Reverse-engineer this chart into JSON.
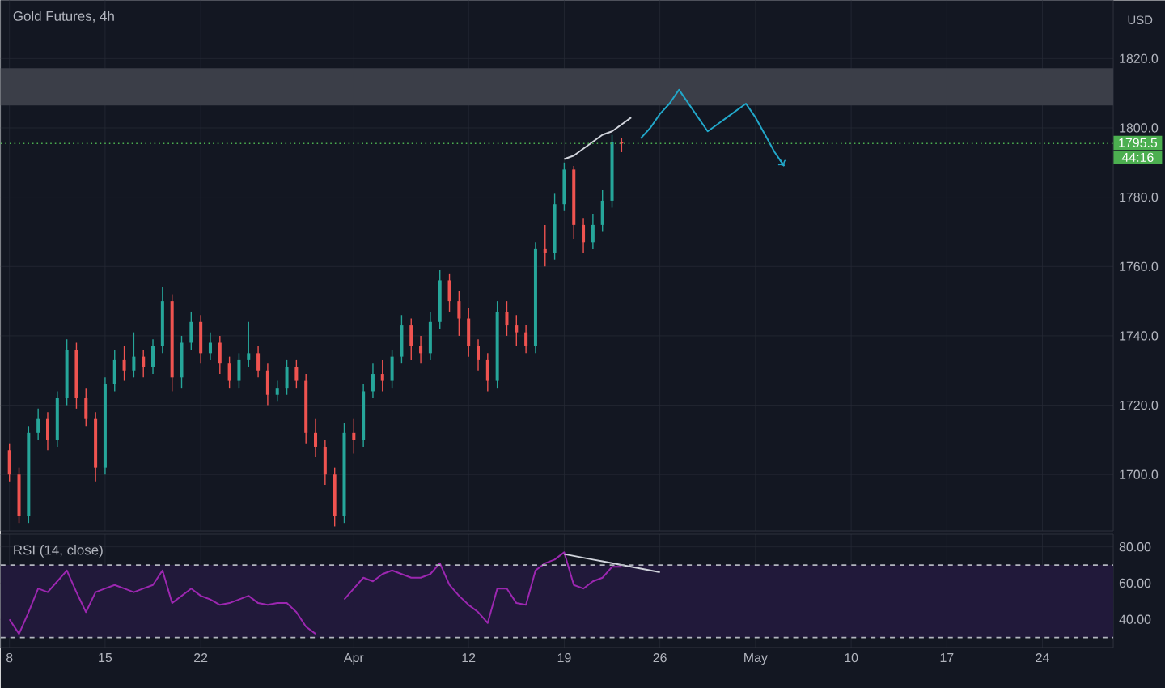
{
  "chart_data": [
    {
      "type": "candlestick",
      "title": "Gold Futures, 4h",
      "annotations": [
        "USD",
        "44:16"
      ],
      "ylim": [
        1683.7,
        1836.8
      ],
      "yticks": [
        {
          "value": 1700,
          "label": "1700.0"
        },
        {
          "value": 1720,
          "label": "1720.0"
        },
        {
          "value": 1740,
          "label": "1740.0"
        },
        {
          "value": 1760,
          "label": "1760.0"
        },
        {
          "value": 1780,
          "label": "1780.0"
        },
        {
          "value": 1800,
          "label": "1800.0"
        },
        {
          "value": 1820,
          "label": "1820.0"
        }
      ],
      "tick_labels": "y",
      "grid": true,
      "bands": [
        {
          "axis": "y",
          "from": 1806.5,
          "to": 1817.2,
          "color": "#3b3e48"
        }
      ],
      "ref_lines": [
        {
          "axis": "y",
          "value": 1795.5,
          "label": "1795.5",
          "color": "#4caf50",
          "line_style": "dotted"
        }
      ],
      "categories": [
        null,
        null,
        null,
        null,
        null,
        null,
        null,
        null,
        null,
        null,
        null,
        null,
        null,
        null,
        null,
        null,
        null,
        null,
        null,
        null,
        null,
        null,
        null,
        null,
        null,
        null,
        null,
        null,
        null,
        null,
        null,
        null,
        null,
        null,
        null,
        null,
        null,
        null,
        null,
        null,
        null,
        null,
        null,
        null,
        null,
        null,
        null,
        null,
        null,
        null,
        null,
        null,
        null,
        null,
        null,
        null,
        null,
        null,
        null,
        null,
        null,
        null,
        null,
        null,
        null,
        null,
        null,
        null,
        null,
        null,
        null,
        null,
        null,
        null,
        null,
        null,
        null,
        null,
        null,
        null,
        null,
        null,
        null,
        null,
        null,
        null,
        null,
        null,
        null,
        null,
        null,
        null,
        null,
        null,
        null,
        null,
        null,
        null,
        null,
        null,
        null,
        null,
        null,
        null,
        null,
        null,
        null,
        null,
        null,
        null,
        null,
        null,
        null,
        null,
        null,
        null
      ],
      "ohlc": [
        [
          1707,
          1709,
          1698,
          1700
        ],
        [
          1700,
          1702,
          1686,
          1688
        ],
        [
          1688,
          1714,
          1686,
          1712
        ],
        [
          1712,
          1719,
          1710,
          1716
        ],
        [
          1716,
          1718,
          1707,
          1710
        ],
        [
          1710,
          1724,
          1708,
          1722
        ],
        [
          1722,
          1739,
          1720,
          1736
        ],
        [
          1736,
          1738,
          1719,
          1722
        ],
        [
          1722,
          1725,
          1714,
          1716
        ],
        [
          1716,
          1718,
          1698,
          1702
        ],
        [
          1702,
          1728,
          1700,
          1726
        ],
        [
          1726,
          1736,
          1724,
          1733
        ],
        [
          1733,
          1737,
          1727,
          1730
        ],
        [
          1730,
          1741,
          1728,
          1734
        ],
        [
          1734,
          1736,
          1728,
          1731
        ],
        [
          1731,
          1739,
          1729,
          1737
        ],
        [
          1737,
          1754,
          1735,
          1750
        ],
        [
          1750,
          1752,
          1724,
          1728
        ],
        [
          1728,
          1740,
          1725,
          1738
        ],
        [
          1738,
          1747,
          1736,
          1744
        ],
        [
          1744,
          1746,
          1732,
          1735
        ],
        [
          1735,
          1741,
          1733,
          1738
        ],
        [
          1738,
          1740,
          1729,
          1732
        ],
        [
          1732,
          1734,
          1725,
          1727
        ],
        [
          1727,
          1735,
          1725,
          1733
        ],
        [
          1733,
          1744,
          1731,
          1735
        ],
        [
          1735,
          1737,
          1728,
          1730
        ],
        [
          1730,
          1732,
          1720,
          1723
        ],
        [
          1723,
          1727,
          1721,
          1725
        ],
        [
          1725,
          1733,
          1723,
          1731
        ],
        [
          1731,
          1733,
          1725,
          1727
        ],
        [
          1727,
          1729,
          1709,
          1712
        ],
        [
          1712,
          1716,
          1705,
          1708
        ],
        [
          1708,
          1710,
          1697,
          1700
        ],
        [
          1700,
          1702,
          1685,
          1688
        ],
        [
          1688,
          1715,
          1686,
          1712
        ],
        [
          1712,
          1716,
          1706,
          1710
        ],
        [
          1710,
          1726,
          1708,
          1724
        ],
        [
          1724,
          1732,
          1722,
          1729
        ],
        [
          1729,
          1733,
          1724,
          1727
        ],
        [
          1727,
          1736,
          1725,
          1734
        ],
        [
          1734,
          1746,
          1732,
          1743
        ],
        [
          1743,
          1745,
          1733,
          1737
        ],
        [
          1737,
          1740,
          1732,
          1735
        ],
        [
          1735,
          1747,
          1733,
          1744
        ],
        [
          1744,
          1759,
          1742,
          1756
        ],
        [
          1756,
          1758,
          1747,
          1750
        ],
        [
          1750,
          1753,
          1740,
          1745
        ],
        [
          1745,
          1748,
          1734,
          1737
        ],
        [
          1737,
          1739,
          1730,
          1733
        ],
        [
          1733,
          1735,
          1724,
          1727
        ],
        [
          1727,
          1750,
          1725,
          1747
        ],
        [
          1747,
          1750,
          1740,
          1743
        ],
        [
          1743,
          1746,
          1737,
          1741
        ],
        [
          1741,
          1743,
          1735,
          1737
        ],
        [
          1737,
          1767,
          1735,
          1765
        ],
        [
          1765,
          1772,
          1760,
          1764
        ],
        [
          1764,
          1781,
          1762,
          1778
        ],
        [
          1778,
          1790,
          1776,
          1788
        ],
        [
          1788,
          1789,
          1768,
          1772
        ],
        [
          1772,
          1774,
          1764,
          1767
        ],
        [
          1767,
          1775,
          1765,
          1772
        ],
        [
          1772,
          1782,
          1770,
          1779
        ],
        [
          1779,
          1798,
          1777,
          1796
        ],
        [
          1796,
          1797,
          1793,
          1795.5
        ],
        null,
        null,
        null,
        null,
        null,
        null,
        null,
        null,
        null,
        null,
        null,
        null,
        null,
        null,
        null,
        null,
        null,
        null,
        null,
        null,
        null,
        null,
        null,
        null,
        null,
        null,
        null,
        null,
        null,
        null,
        null,
        null,
        null,
        null,
        null,
        null,
        null,
        null,
        null,
        null,
        null,
        null,
        null,
        null,
        null,
        null,
        null,
        null,
        null,
        null,
        null
      ],
      "series": [
        {
          "type": "line",
          "color": "#d1d4dc",
          "values": [
            null,
            null,
            null,
            null,
            null,
            null,
            null,
            null,
            null,
            null,
            null,
            null,
            null,
            null,
            null,
            null,
            null,
            null,
            null,
            null,
            null,
            null,
            null,
            null,
            null,
            null,
            null,
            null,
            null,
            null,
            null,
            null,
            null,
            null,
            null,
            null,
            null,
            null,
            null,
            null,
            null,
            null,
            null,
            null,
            null,
            null,
            null,
            null,
            null,
            null,
            null,
            null,
            null,
            null,
            null,
            null,
            null,
            null,
            1791,
            1792,
            1794,
            1796,
            1798,
            1799,
            1801,
            1803,
            null,
            null,
            null,
            null,
            null,
            null,
            null,
            null,
            null,
            null,
            null,
            null,
            null,
            null,
            null,
            null,
            null,
            null,
            null,
            null,
            null,
            null,
            null,
            null,
            null,
            null,
            null,
            null,
            null,
            null,
            null,
            null,
            null,
            null,
            null,
            null,
            null,
            null,
            null,
            null,
            null,
            null,
            null,
            null,
            null,
            null,
            null,
            null,
            null,
            null
          ]
        },
        {
          "type": "line",
          "color": "#22a7c9",
          "values": [
            null,
            null,
            null,
            null,
            null,
            null,
            null,
            null,
            null,
            null,
            null,
            null,
            null,
            null,
            null,
            null,
            null,
            null,
            null,
            null,
            null,
            null,
            null,
            null,
            null,
            null,
            null,
            null,
            null,
            null,
            null,
            null,
            null,
            null,
            null,
            null,
            null,
            null,
            null,
            null,
            null,
            null,
            null,
            null,
            null,
            null,
            null,
            null,
            null,
            null,
            null,
            null,
            null,
            null,
            null,
            null,
            null,
            null,
            null,
            null,
            null,
            null,
            null,
            null,
            null,
            null,
            1797,
            1800,
            1804,
            1807,
            1811,
            1807,
            1803,
            1799,
            1801,
            1803,
            1805,
            1807,
            1803,
            1798,
            1793,
            1789,
            null,
            null,
            null,
            null,
            null,
            null,
            null,
            null,
            null,
            null,
            null,
            null,
            null,
            null,
            null,
            null,
            null,
            null,
            null,
            null,
            null,
            null,
            null,
            null,
            null,
            null,
            null,
            null,
            null,
            null,
            null,
            null,
            null,
            null
          ]
        }
      ]
    },
    {
      "type": "line",
      "title": "RSI (14, close)",
      "ylim": [
        24.5,
        87
      ],
      "yticks": [
        {
          "value": 40,
          "label": "40.00"
        },
        {
          "value": 60,
          "label": "60.00"
        },
        {
          "value": 80,
          "label": "80.00"
        }
      ],
      "grid": true,
      "bands": [
        {
          "axis": "y",
          "from": 30,
          "to": 70,
          "color": "#21193a"
        }
      ],
      "ref_lines": [
        {
          "axis": "y",
          "value": 70,
          "color": "#b2b5be",
          "line_style": "dashed"
        },
        {
          "axis": "y",
          "value": 30,
          "color": "#b2b5be",
          "line_style": "dashed"
        }
      ],
      "categories": [
        "8",
        null,
        null,
        null,
        null,
        null,
        null,
        null,
        null,
        null,
        "15",
        null,
        null,
        null,
        null,
        null,
        null,
        null,
        null,
        null,
        "22",
        null,
        null,
        null,
        null,
        null,
        null,
        null,
        null,
        null,
        null,
        null,
        null,
        null,
        null,
        null,
        "Apr",
        null,
        null,
        null,
        null,
        null,
        null,
        null,
        null,
        null,
        null,
        null,
        "12",
        null,
        null,
        null,
        null,
        null,
        null,
        null,
        null,
        null,
        "19",
        null,
        null,
        null,
        null,
        null,
        null,
        null,
        null,
        null,
        "26",
        null,
        null,
        null,
        null,
        null,
        null,
        null,
        null,
        null,
        "May",
        null,
        null,
        null,
        null,
        null,
        null,
        null,
        null,
        null,
        "10",
        null,
        null,
        null,
        null,
        null,
        null,
        null,
        null,
        null,
        "17",
        null,
        null,
        null,
        null,
        null,
        null,
        null,
        null,
        null,
        "24",
        null,
        null,
        null,
        null,
        null,
        null,
        null
      ],
      "series": [
        {
          "color": "#9c27b0",
          "values": [
            40,
            32,
            44,
            57,
            55,
            61,
            67,
            55,
            44,
            55,
            57,
            59,
            57,
            55,
            57,
            59,
            67,
            49,
            53,
            57,
            53,
            51,
            48,
            49,
            51,
            53,
            49,
            48,
            49,
            49,
            44,
            36,
            32,
            null,
            null,
            51,
            57,
            63,
            61,
            65,
            67,
            65,
            63,
            63,
            65,
            71,
            59,
            53,
            48,
            44,
            38,
            57,
            57,
            49,
            48,
            67,
            71,
            73,
            77,
            59,
            57,
            61,
            63,
            69,
            69,
            null,
            null,
            null,
            null,
            null,
            null,
            null,
            null,
            null,
            null,
            null,
            null,
            null,
            null,
            null,
            null,
            null,
            null,
            null,
            null,
            null,
            null,
            null,
            null,
            null,
            null,
            null,
            null,
            null,
            null,
            null,
            null,
            null,
            null,
            null,
            null,
            null,
            null,
            null,
            null,
            null,
            null,
            null,
            null,
            null,
            null,
            null,
            null,
            null,
            null,
            null
          ]
        },
        {
          "color": "#d1d4dc",
          "values": [
            null,
            null,
            null,
            null,
            null,
            null,
            null,
            null,
            null,
            null,
            null,
            null,
            null,
            null,
            null,
            null,
            null,
            null,
            null,
            null,
            null,
            null,
            null,
            null,
            null,
            null,
            null,
            null,
            null,
            null,
            null,
            null,
            null,
            null,
            null,
            null,
            null,
            null,
            null,
            null,
            null,
            null,
            null,
            null,
            null,
            null,
            null,
            null,
            null,
            null,
            null,
            null,
            null,
            null,
            null,
            null,
            null,
            null,
            76,
            75,
            74,
            73,
            72,
            71,
            70,
            69,
            68,
            67,
            66,
            null,
            null,
            null,
            null,
            null,
            null,
            null,
            null,
            null,
            null,
            null,
            null,
            null,
            null,
            null,
            null,
            null,
            null,
            null,
            null,
            null,
            null,
            null,
            null,
            null,
            null,
            null,
            null,
            null,
            null,
            null,
            null,
            null,
            null,
            null,
            null,
            null,
            null,
            null,
            null,
            null,
            null,
            null,
            null,
            null,
            null,
            null
          ]
        }
      ]
    }
  ]
}
